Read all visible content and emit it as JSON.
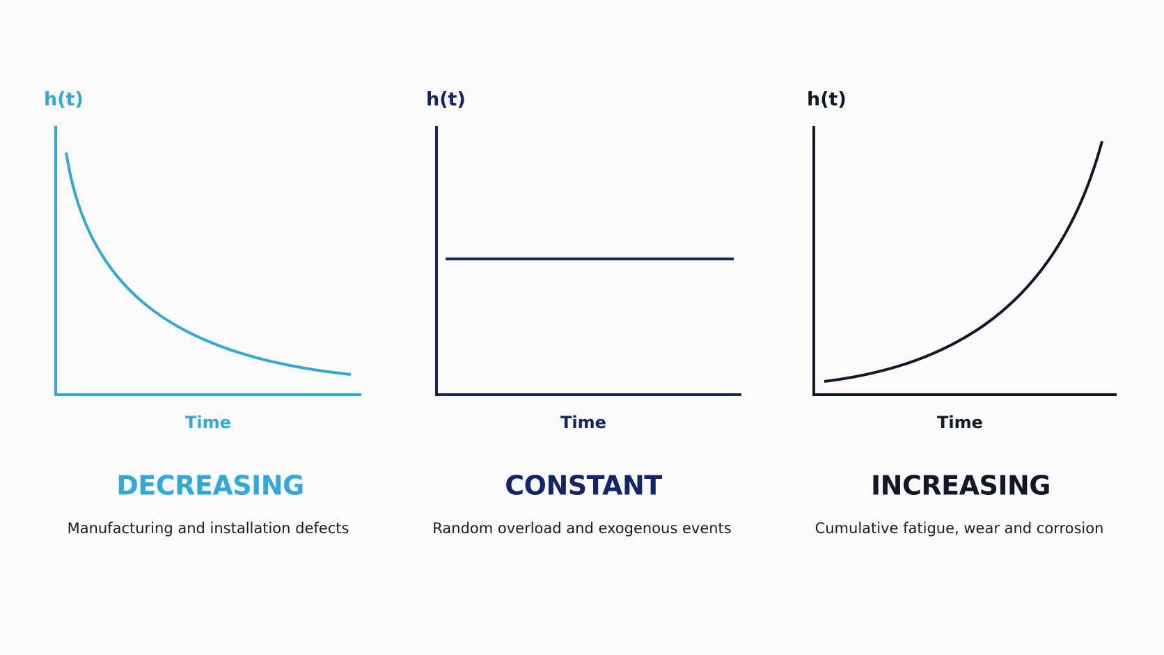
{
  "panels": [
    {
      "y_label": "h(t)",
      "x_label": "Time",
      "title": "DECREASING",
      "description": "Manufacturing and installation defects"
    },
    {
      "y_label": "h(t)",
      "x_label": "Time",
      "title": "CONSTANT",
      "description": "Random overload and exogenous events"
    },
    {
      "y_label": "h(t)",
      "x_label": "Time",
      "title": "INCREASING",
      "description": "Cumulative fatigue, wear and corrosion"
    }
  ]
}
